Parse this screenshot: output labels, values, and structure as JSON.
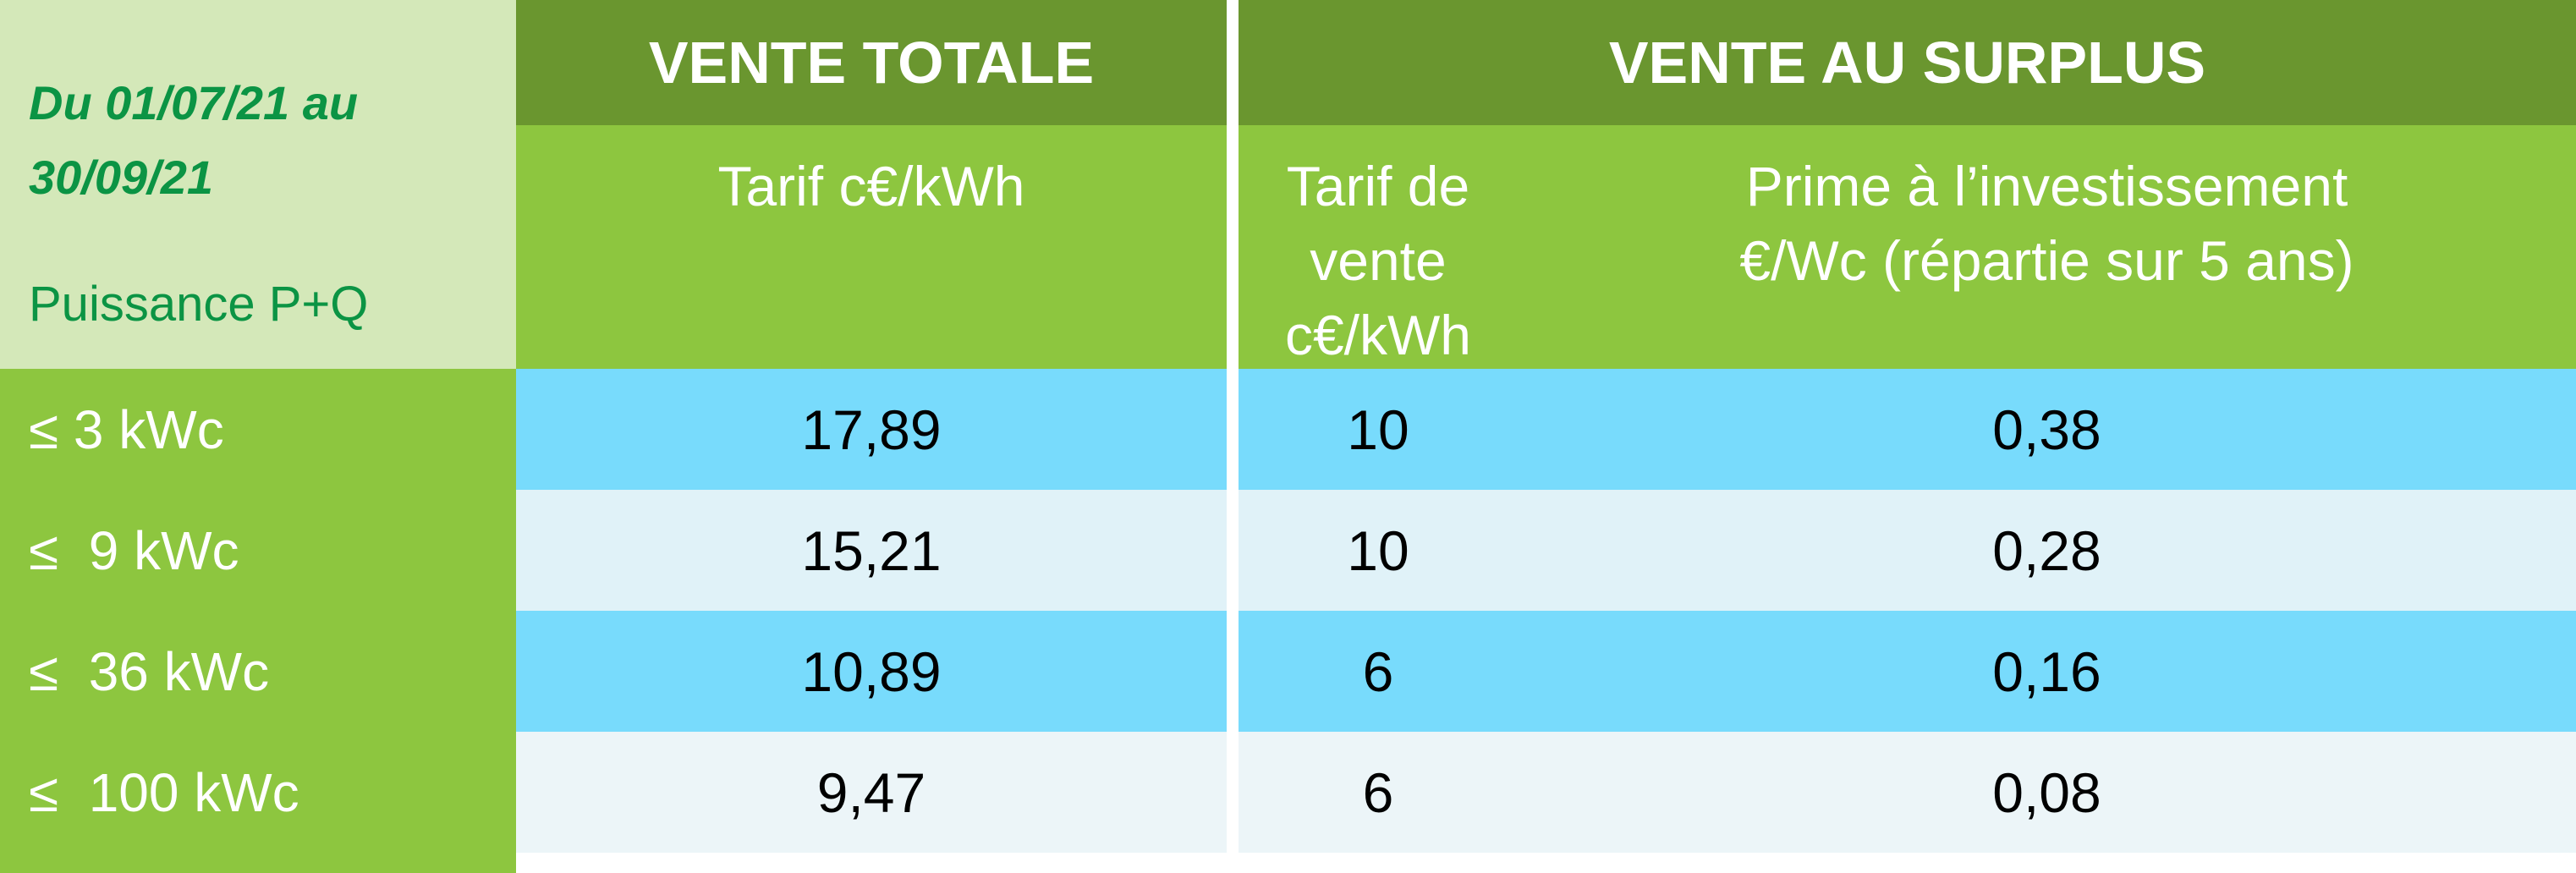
{
  "corner": {
    "period": "Du 01/07/21 au 30/09/21",
    "power_label": "Puissance P+Q"
  },
  "headers": {
    "vente_totale": "VENTE TOTALE",
    "vente_surplus": "VENTE AU SURPLUS",
    "tarif": "Tarif c€/kWh",
    "tarif_vente_line1": "Tarif de vente",
    "tarif_vente_line2": "c€/kWh",
    "prime_line1": "Prime à l’investissement",
    "prime_line2": "€/Wc (répartie sur 5 ans)"
  },
  "rows": [
    {
      "power": "≤ 3 kWc",
      "tarif_total": "17,89",
      "tarif_vente": "10",
      "prime": "0,38"
    },
    {
      "power": "≤  9 kWc",
      "tarif_total": "15,21",
      "tarif_vente": "10",
      "prime": "0,28"
    },
    {
      "power": "≤  36 kWc",
      "tarif_total": "10,89",
      "tarif_vente": "6",
      "prime": "0,16"
    },
    {
      "power": "≤  100 kWc",
      "tarif_total": "9,47",
      "tarif_vente": "6",
      "prime": "0,08"
    }
  ],
  "colors": {
    "dark_green": "#6a962f",
    "green": "#8dc63f",
    "pale_green": "#d4e8b9",
    "text_green": "#0b9444",
    "blue": "#78dbfc",
    "pale_blue": "#e0f2f8"
  }
}
